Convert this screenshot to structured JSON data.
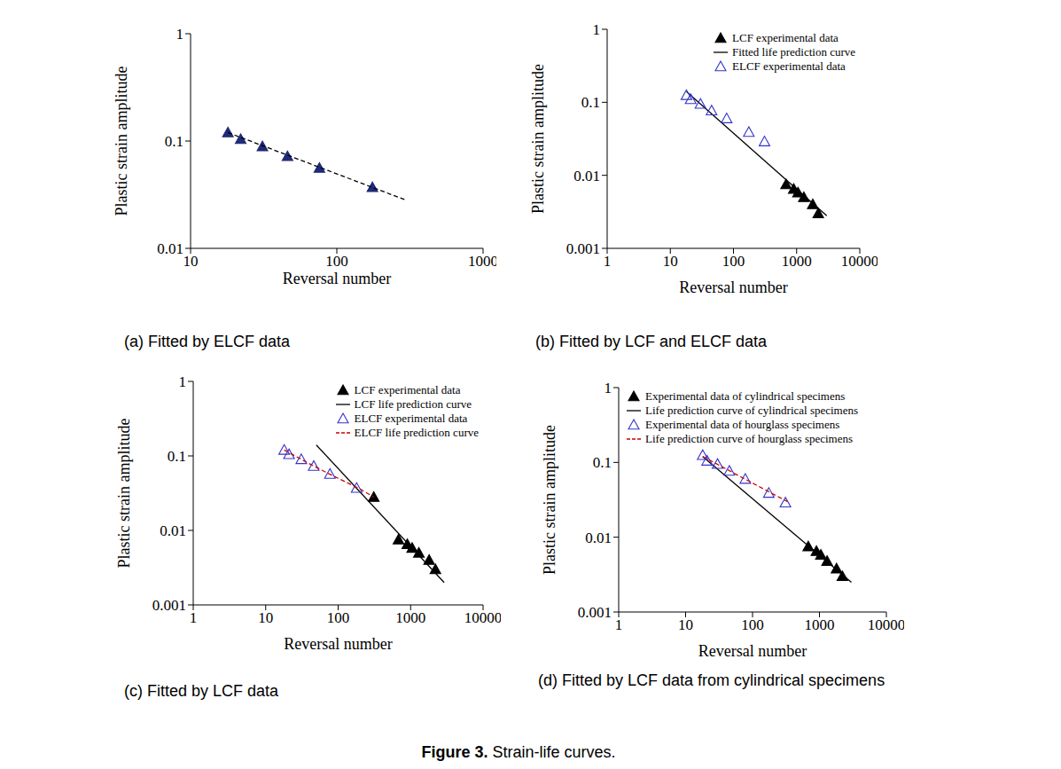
{
  "chart_data": [
    {
      "type": "scatter",
      "title": "(a) Fitted by ELCF data",
      "x_label": "Reversal number",
      "y_label": "Plastic strain amplitude",
      "log": true,
      "xlim": [
        10,
        1000
      ],
      "xticks": [
        10,
        100,
        1000
      ],
      "ylim": [
        0.01,
        1
      ],
      "yticks": [
        0.01,
        0.1,
        1
      ],
      "series": [
        {
          "color": "#1f2a78",
          "marker": "triangle_filled",
          "line_style": "none",
          "x": [
            18,
            22,
            31,
            46,
            76,
            175
          ],
          "values": [
            0.12,
            0.104,
            0.089,
            0.072,
            0.056,
            0.037
          ]
        },
        {
          "color": "#000000",
          "marker": "none",
          "line_style": "dashed",
          "x": [
            18,
            300
          ],
          "values": [
            0.12,
            0.028
          ]
        }
      ]
    },
    {
      "type": "scatter",
      "title": "(b) Fitted by LCF and ELCF data",
      "x_label": "Reversal number",
      "y_label": "Plastic strain amplitude",
      "log": true,
      "xlim": [
        1,
        10000
      ],
      "xticks": [
        1,
        10,
        100,
        1000,
        10000
      ],
      "ylim": [
        0.001,
        1
      ],
      "yticks": [
        0.001,
        0.01,
        0.1,
        1
      ],
      "legend": "upper right",
      "series": [
        {
          "name": "LCF experimental data",
          "color": "#000000",
          "marker": "triangle_filled",
          "line_style": "none",
          "x": [
            680,
            900,
            1050,
            1300,
            1800,
            2200
          ],
          "values": [
            0.0075,
            0.0065,
            0.0058,
            0.005,
            0.004,
            0.003
          ]
        },
        {
          "name": "Fitted life prediction curve",
          "color": "#000000",
          "marker": "none",
          "line_style": "solid",
          "x": [
            18,
            3000
          ],
          "values": [
            0.14,
            0.0028
          ]
        },
        {
          "name": "ELCF experimental data",
          "color": "#3333cc",
          "marker": "triangle_open",
          "line_style": "none",
          "x": [
            18,
            21,
            30,
            45,
            78,
            175,
            310
          ],
          "values": [
            0.125,
            0.11,
            0.095,
            0.077,
            0.06,
            0.039,
            0.029
          ]
        }
      ]
    },
    {
      "type": "scatter",
      "title": "(c) Fitted by LCF data",
      "x_label": "Reversal number",
      "y_label": "Plastic strain amplitude",
      "log": true,
      "xlim": [
        1,
        10000
      ],
      "xticks": [
        1,
        10,
        100,
        1000,
        10000
      ],
      "ylim": [
        0.001,
        1
      ],
      "yticks": [
        0.001,
        0.01,
        0.1,
        1
      ],
      "legend": "upper right",
      "series": [
        {
          "name": "LCF experimental data",
          "color": "#000000",
          "marker": "triangle_filled",
          "line_style": "none",
          "x": [
            310,
            680,
            900,
            1050,
            1300,
            1800,
            2200
          ],
          "values": [
            0.028,
            0.0075,
            0.0065,
            0.0058,
            0.005,
            0.004,
            0.003
          ]
        },
        {
          "name": "LCF life prediction curve",
          "color": "#000000",
          "marker": "none",
          "line_style": "solid",
          "x": [
            50,
            2900
          ],
          "values": [
            0.14,
            0.002
          ]
        },
        {
          "name": "ELCF experimental data",
          "color": "#3333cc",
          "marker": "triangle_open",
          "line_style": "none",
          "x": [
            18,
            21,
            31,
            46,
            77,
            180
          ],
          "values": [
            0.12,
            0.105,
            0.09,
            0.073,
            0.057,
            0.037
          ]
        },
        {
          "name": "ELCF life prediction curve",
          "color": "#cc0000",
          "marker": "none",
          "line_style": "dashed",
          "x": [
            18,
            46,
            100,
            200,
            310
          ],
          "values": [
            0.12,
            0.073,
            0.05,
            0.036,
            0.028
          ]
        }
      ]
    },
    {
      "type": "scatter",
      "title": "(d) Fitted by LCF data from cylindrical specimens",
      "x_label": "Reversal number",
      "y_label": "Plastic strain amplitude",
      "log": true,
      "xlim": [
        1,
        10000
      ],
      "xticks": [
        1,
        10,
        100,
        1000,
        10000
      ],
      "ylim": [
        0.001,
        1
      ],
      "yticks": [
        0.001,
        0.01,
        0.1,
        1
      ],
      "legend": "upper left",
      "series": [
        {
          "name": "Experimental data of cylindrical specimens",
          "color": "#000000",
          "marker": "triangle_filled",
          "line_style": "none",
          "x": [
            680,
            900,
            1050,
            1300,
            1800,
            2200
          ],
          "values": [
            0.0075,
            0.0065,
            0.0058,
            0.0048,
            0.0038,
            0.003
          ]
        },
        {
          "name": "Life prediction curve of cylindrical specimens",
          "color": "#000000",
          "marker": "none",
          "line_style": "solid",
          "x": [
            18,
            3000
          ],
          "values": [
            0.12,
            0.0025
          ]
        },
        {
          "name": "Experimental data of hourglass specimens",
          "color": "#3333cc",
          "marker": "triangle_open",
          "line_style": "none",
          "x": [
            18,
            21,
            30,
            45,
            78,
            175,
            310
          ],
          "values": [
            0.125,
            0.105,
            0.095,
            0.077,
            0.06,
            0.039,
            0.029
          ]
        },
        {
          "name": "Life prediction curve of hourglass specimens",
          "color": "#cc0000",
          "marker": "none",
          "line_style": "dashed",
          "x": [
            18,
            330
          ],
          "values": [
            0.12,
            0.03
          ]
        }
      ]
    }
  ],
  "figure": {
    "label": "Figure 3.",
    "title": "Strain-life curves."
  }
}
